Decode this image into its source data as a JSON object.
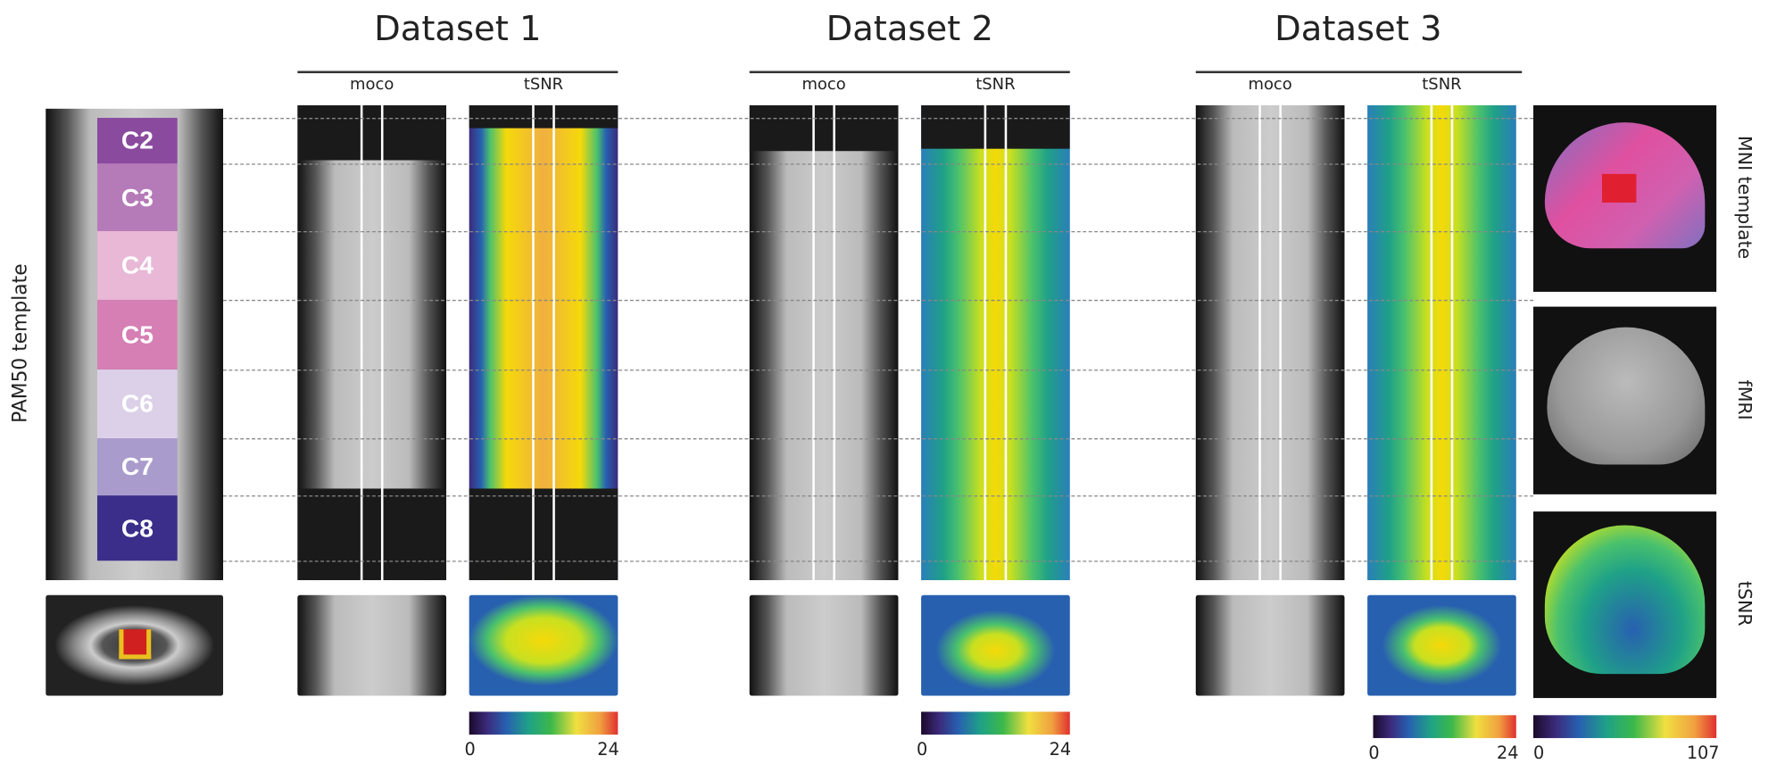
{
  "titles": [
    "Dataset 1",
    "Dataset 2",
    "Dataset 3"
  ],
  "column_labels": {
    "moco": "moco",
    "tsnr": "tSNR"
  },
  "template_label": "PAM50 template",
  "vertebrae": [
    "C2",
    "C3",
    "C4",
    "C5",
    "C6",
    "C7",
    "C8"
  ],
  "vertebra_colors": [
    "#8a4a9e",
    "#b57ab8",
    "#e8b8d6",
    "#d57fb4",
    "#dcd0e8",
    "#a99ccc",
    "#3a2e8a"
  ],
  "brain_labels": [
    "MNI template",
    "fMRI",
    "tSNR"
  ],
  "colorbars": [
    {
      "min": "0",
      "max": "24"
    },
    {
      "min": "0",
      "max": "24"
    },
    {
      "min": "0",
      "max": "24"
    },
    {
      "min": "0",
      "max": "107"
    }
  ]
}
